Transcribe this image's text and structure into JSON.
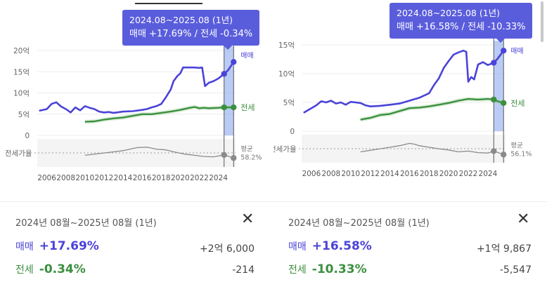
{
  "colors": {
    "sale": "#4a43d8",
    "jeonse": "#3b8f3f",
    "ratio": "#8a8a8a",
    "tooltip_bg": "#5a5ddb"
  },
  "icons": {
    "close": "close-icon"
  },
  "panels": [
    {
      "tooltip": {
        "title": "2024.08~2025.08 (1년)",
        "line": "매매 +17.69%  /  전세 -0.34%"
      },
      "summary": {
        "period": "2024년 08월~2025년 08월 (1년)",
        "sale": {
          "label": "매매",
          "pct": "+17.69%",
          "amount": "+2억 6,000"
        },
        "jeonse": {
          "label": "전세",
          "pct": "-0.34%",
          "amount": "-214"
        }
      },
      "chart_data": {
        "type": "line",
        "x_ticks": [
          "2006",
          "2008",
          "2010",
          "2012",
          "2014",
          "2016",
          "2018",
          "2020",
          "2022",
          "2024"
        ],
        "y_ticks": [
          "20억",
          "15억",
          "10억",
          "5억",
          "0"
        ],
        "ylim_억": [
          0,
          20
        ],
        "xlim": [
          2005,
          2025.8
        ],
        "ratio_axis_label": "전세가율",
        "ratio_legend": {
          "label": "평균",
          "value": "58.2%"
        },
        "legend_labels": {
          "sale": "매매",
          "jeonse": "전세"
        },
        "highlight": [
          2024.6,
          2025.6
        ],
        "series": [
          {
            "name": "매매",
            "unit": "억",
            "points": [
              [
                2005.2,
                5.8
              ],
              [
                2006,
                6.2
              ],
              [
                2006.5,
                7.4
              ],
              [
                2007,
                7.8
              ],
              [
                2007.5,
                6.8
              ],
              [
                2008,
                6.2
              ],
              [
                2008.5,
                5.4
              ],
              [
                2009,
                6.6
              ],
              [
                2009.5,
                5.9
              ],
              [
                2010,
                6.9
              ],
              [
                2010.5,
                6.5
              ],
              [
                2011,
                6.2
              ],
              [
                2011.5,
                5.6
              ],
              [
                2012,
                5.4
              ],
              [
                2012.5,
                5.5
              ],
              [
                2013,
                5.3
              ],
              [
                2014,
                5.6
              ],
              [
                2015,
                5.7
              ],
              [
                2016,
                6.0
              ],
              [
                2016.5,
                6.2
              ],
              [
                2017,
                6.6
              ],
              [
                2017.5,
                6.9
              ],
              [
                2018,
                7.4
              ],
              [
                2018.5,
                9.0
              ],
              [
                2019,
                10.8
              ],
              [
                2019.3,
                12.8
              ],
              [
                2019.7,
                14.0
              ],
              [
                2020,
                14.6
              ],
              [
                2020.3,
                16.0
              ],
              [
                2021,
                16.0
              ],
              [
                2021.5,
                16.0
              ],
              [
                2022,
                15.9
              ],
              [
                2022.3,
                16.0
              ],
              [
                2022.6,
                11.6
              ],
              [
                2023,
                12.4
              ],
              [
                2023.5,
                12.8
              ],
              [
                2024,
                13.4
              ],
              [
                2024.6,
                14.5
              ],
              [
                2025,
                15.3
              ],
              [
                2025.6,
                17.3
              ]
            ]
          },
          {
            "name": "전세",
            "unit": "억",
            "points": [
              [
                2010,
                3.2
              ],
              [
                2011,
                3.3
              ],
              [
                2012,
                3.7
              ],
              [
                2013,
                4.0
              ],
              [
                2014,
                4.2
              ],
              [
                2015,
                4.6
              ],
              [
                2016,
                5.0
              ],
              [
                2017,
                5.0
              ],
              [
                2018,
                5.3
              ],
              [
                2019,
                5.6
              ],
              [
                2020,
                6.0
              ],
              [
                2021,
                6.5
              ],
              [
                2021.5,
                6.7
              ],
              [
                2022,
                6.4
              ],
              [
                2022.5,
                6.5
              ],
              [
                2023,
                6.4
              ],
              [
                2024,
                6.5
              ],
              [
                2024.6,
                6.6
              ],
              [
                2025.6,
                6.6
              ]
            ]
          },
          {
            "name": "평균",
            "unit": "%",
            "points": [
              [
                2010,
                52
              ],
              [
                2012,
                58
              ],
              [
                2014,
                64
              ],
              [
                2015.5,
                72
              ],
              [
                2016.5,
                73
              ],
              [
                2017.5,
                68
              ],
              [
                2018.5,
                66
              ],
              [
                2019.5,
                60
              ],
              [
                2020.5,
                55
              ],
              [
                2021.5,
                52
              ],
              [
                2022.5,
                49
              ],
              [
                2023.5,
                48
              ],
              [
                2024.6,
                53
              ],
              [
                2025.6,
                45
              ]
            ]
          }
        ]
      }
    },
    {
      "tooltip": {
        "title": "2024.08~2025.08 (1년)",
        "line": "매매 +16.58%  /  전세 -10.33%"
      },
      "summary": {
        "period": "2024년 08월~2025년 08월 (1년)",
        "sale": {
          "label": "매매",
          "pct": "+16.58%",
          "amount": "+1억 9,867"
        },
        "jeonse": {
          "label": "전세",
          "pct": "-10.33%",
          "amount": "-5,547"
        }
      },
      "chart_data": {
        "type": "line",
        "x_ticks": [
          "2006",
          "2008",
          "2010",
          "2012",
          "2014",
          "2016",
          "2018",
          "2020",
          "2022",
          "2024"
        ],
        "y_ticks": [
          "15억",
          "10억",
          "5억",
          "0"
        ],
        "ylim_억": [
          0,
          15
        ],
        "xlim": [
          2005,
          2025.8
        ],
        "ratio_axis_label": "전세가율",
        "ratio_legend": {
          "label": "평균",
          "value": "56.1%"
        },
        "legend_labels": {
          "sale": "매매",
          "jeonse": "전세"
        },
        "highlight": [
          2024.6,
          2025.6
        ],
        "series": [
          {
            "name": "매매",
            "unit": "억",
            "points": [
              [
                2005.2,
                3.2
              ],
              [
                2006,
                4.0
              ],
              [
                2006.5,
                4.5
              ],
              [
                2007,
                5.2
              ],
              [
                2007.5,
                5.0
              ],
              [
                2008,
                5.3
              ],
              [
                2008.5,
                4.8
              ],
              [
                2009,
                5.0
              ],
              [
                2009.5,
                4.6
              ],
              [
                2010,
                5.1
              ],
              [
                2011,
                4.9
              ],
              [
                2011.5,
                4.5
              ],
              [
                2012,
                4.3
              ],
              [
                2013,
                4.4
              ],
              [
                2014,
                4.6
              ],
              [
                2015,
                4.8
              ],
              [
                2016,
                5.3
              ],
              [
                2017,
                5.8
              ],
              [
                2018,
                6.6
              ],
              [
                2018.5,
                8.0
              ],
              [
                2019,
                9.2
              ],
              [
                2019.5,
                11.0
              ],
              [
                2020,
                12.2
              ],
              [
                2020.5,
                13.3
              ],
              [
                2021,
                13.7
              ],
              [
                2021.5,
                14.0
              ],
              [
                2021.8,
                13.8
              ],
              [
                2022,
                8.6
              ],
              [
                2022.3,
                9.4
              ],
              [
                2022.6,
                9.0
              ],
              [
                2023,
                11.6
              ],
              [
                2023.5,
                12.0
              ],
              [
                2024,
                11.5
              ],
              [
                2024.6,
                11.9
              ],
              [
                2025,
                12.6
              ],
              [
                2025.6,
                14.0
              ]
            ]
          },
          {
            "name": "전세",
            "unit": "억",
            "points": [
              [
                2011,
                2.0
              ],
              [
                2012,
                2.3
              ],
              [
                2013,
                2.8
              ],
              [
                2014,
                3.0
              ],
              [
                2015,
                3.5
              ],
              [
                2016,
                4.0
              ],
              [
                2017,
                4.1
              ],
              [
                2018,
                4.3
              ],
              [
                2019,
                4.6
              ],
              [
                2020,
                4.9
              ],
              [
                2021,
                5.3
              ],
              [
                2022,
                5.6
              ],
              [
                2023,
                5.5
              ],
              [
                2024,
                5.6
              ],
              [
                2024.6,
                5.5
              ],
              [
                2025,
                5.2
              ],
              [
                2025.6,
                4.9
              ]
            ]
          },
          {
            "name": "평균",
            "unit": "%",
            "points": [
              [
                2011,
                50
              ],
              [
                2012,
                54
              ],
              [
                2013,
                58
              ],
              [
                2014,
                62
              ],
              [
                2015,
                66
              ],
              [
                2016,
                72
              ],
              [
                2016.5,
                70
              ],
              [
                2017,
                66
              ],
              [
                2018,
                62
              ],
              [
                2019,
                58
              ],
              [
                2020,
                55
              ],
              [
                2021,
                50
              ],
              [
                2022,
                52
              ],
              [
                2023,
                48
              ],
              [
                2024,
                47
              ],
              [
                2024.6,
                52
              ],
              [
                2025.6,
                43
              ]
            ]
          }
        ]
      }
    }
  ]
}
